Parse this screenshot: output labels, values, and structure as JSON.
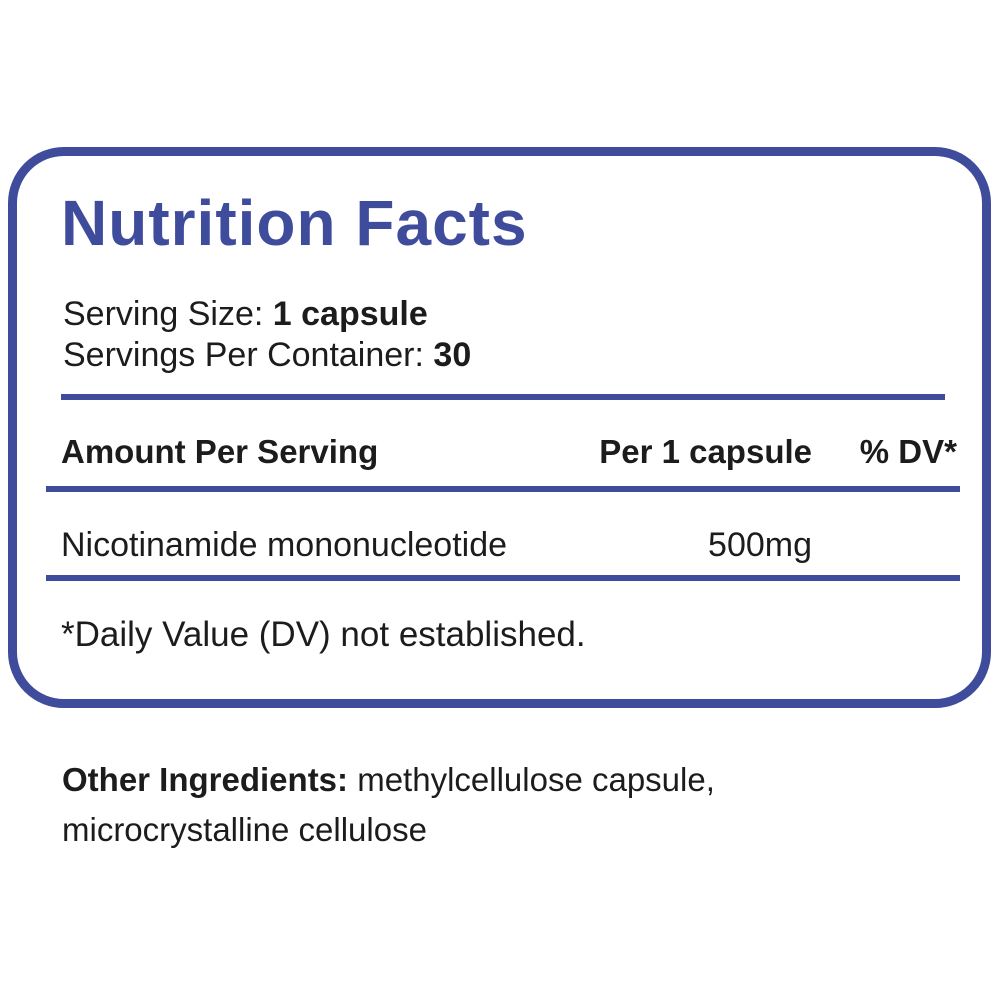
{
  "colors": {
    "accent": "#3f4c9b",
    "text": "#1c1c1c",
    "background": "#ffffff"
  },
  "panel": {
    "title": "Nutrition Facts",
    "serving_size": {
      "label": "Serving Size:",
      "value": "1 capsule"
    },
    "servings_per_container": {
      "label": "Servings Per Container:",
      "value": "30"
    },
    "header": {
      "amount_per_serving": "Amount Per Serving",
      "per_serving": "Per 1 capsule",
      "percent_dv": "% DV*"
    },
    "ingredients": [
      {
        "name": "Nicotinamide mononucleotide",
        "amount": "500mg",
        "dv": ""
      }
    ],
    "footnote": "*Daily Value (DV) not established."
  },
  "other_ingredients": {
    "label": "Other Ingredients:",
    "value": "methylcellulose capsule, microcrystalline cellulose"
  }
}
